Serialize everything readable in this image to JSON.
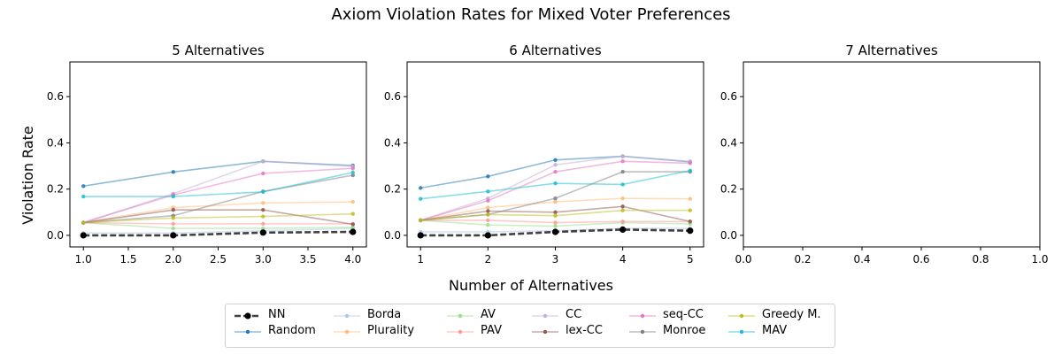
{
  "figure": {
    "suptitle": "Axiom Violation Rates for Mixed Voter Preferences",
    "xlabel": "Number of Alternatives",
    "ylabel": "Violation Rate"
  },
  "colors": {
    "NN": "#000000",
    "Random": "#1f77b4",
    "Borda": "#aec7e8",
    "Plurality": "#ffbb78",
    "AV": "#98df8a",
    "PAV": "#ff9896",
    "CC": "#c5b0d5",
    "lex-CC": "#8c564b",
    "seq-CC": "#e377c2",
    "Monroe": "#7f7f7f",
    "Greedy M.": "#bcbd22",
    "MAV": "#17becf"
  },
  "legend": {
    "columns": [
      [
        "NN",
        "Random"
      ],
      [
        "Borda",
        "Plurality"
      ],
      [
        "AV",
        "PAV"
      ],
      [
        "CC",
        "lex-CC"
      ],
      [
        "seq-CC",
        "Monroe"
      ],
      [
        "Greedy M.",
        "MAV"
      ]
    ]
  },
  "chart_data": [
    {
      "type": "line",
      "title": "5 Alternatives",
      "x": [
        1.0,
        2.0,
        3.0,
        4.0
      ],
      "xticks": [
        "1.0",
        "1.5",
        "2.0",
        "2.5",
        "3.0",
        "3.5",
        "4.0"
      ],
      "xtick_values": [
        1.0,
        1.5,
        2.0,
        2.5,
        3.0,
        3.5,
        4.0
      ],
      "xlim": [
        0.85,
        4.15
      ],
      "ylim": [
        -0.05,
        0.75
      ],
      "yticks": [
        "0.0",
        "0.2",
        "0.4",
        "0.6"
      ],
      "ytick_values": [
        0.0,
        0.2,
        0.4,
        0.6
      ],
      "series": [
        {
          "name": "Random",
          "values": [
            0.213,
            0.274,
            0.32,
            0.302
          ]
        },
        {
          "name": "Borda",
          "values": [
            0.01,
            0.01,
            0.02,
            0.03
          ]
        },
        {
          "name": "Plurality",
          "values": [
            0.055,
            0.12,
            0.14,
            0.145
          ]
        },
        {
          "name": "AV",
          "values": [
            0.055,
            0.03,
            0.03,
            0.035
          ]
        },
        {
          "name": "PAV",
          "values": [
            0.055,
            0.05,
            0.05,
            0.05
          ]
        },
        {
          "name": "CC",
          "values": [
            0.055,
            0.18,
            0.32,
            0.298
          ]
        },
        {
          "name": "lex-CC",
          "values": [
            0.055,
            0.11,
            0.11,
            0.048
          ]
        },
        {
          "name": "seq-CC",
          "values": [
            0.055,
            0.175,
            0.268,
            0.29
          ]
        },
        {
          "name": "Monroe",
          "values": [
            0.055,
            0.085,
            0.19,
            0.26
          ]
        },
        {
          "name": "Greedy M.",
          "values": [
            0.055,
            0.075,
            0.082,
            0.093
          ]
        },
        {
          "name": "MAV",
          "values": [
            0.168,
            0.168,
            0.188,
            0.272
          ]
        },
        {
          "name": "NN",
          "values": [
            0.0,
            0.0,
            0.012,
            0.015
          ]
        }
      ]
    },
    {
      "type": "line",
      "title": "6 Alternatives",
      "x": [
        1,
        2,
        3,
        4,
        5
      ],
      "xticks": [
        "1",
        "2",
        "3",
        "4",
        "5"
      ],
      "xtick_values": [
        1,
        2,
        3,
        4,
        5
      ],
      "xlim": [
        0.8,
        5.2
      ],
      "ylim": [
        -0.05,
        0.75
      ],
      "yticks": [
        "0.0",
        "0.2",
        "0.4",
        "0.6"
      ],
      "ytick_values": [
        0.0,
        0.2,
        0.4,
        0.6
      ],
      "series": [
        {
          "name": "Random",
          "values": [
            0.205,
            0.255,
            0.326,
            0.342,
            0.318
          ]
        },
        {
          "name": "Borda",
          "values": [
            0.015,
            0.015,
            0.02,
            0.03,
            0.03
          ]
        },
        {
          "name": "Plurality",
          "values": [
            0.065,
            0.12,
            0.145,
            0.16,
            0.158
          ]
        },
        {
          "name": "AV",
          "values": [
            0.065,
            0.045,
            0.04,
            0.055,
            0.05
          ]
        },
        {
          "name": "PAV",
          "values": [
            0.065,
            0.065,
            0.055,
            0.06,
            0.06
          ]
        },
        {
          "name": "CC",
          "values": [
            0.065,
            0.16,
            0.305,
            0.342,
            0.32
          ]
        },
        {
          "name": "lex-CC",
          "values": [
            0.065,
            0.105,
            0.1,
            0.125,
            0.06
          ]
        },
        {
          "name": "seq-CC",
          "values": [
            0.065,
            0.15,
            0.275,
            0.32,
            0.312
          ]
        },
        {
          "name": "Monroe",
          "values": [
            0.065,
            0.09,
            0.16,
            0.275,
            0.275
          ]
        },
        {
          "name": "Greedy M.",
          "values": [
            0.065,
            0.09,
            0.085,
            0.108,
            0.108
          ]
        },
        {
          "name": "MAV",
          "values": [
            0.158,
            0.19,
            0.225,
            0.22,
            0.28
          ]
        },
        {
          "name": "NN",
          "values": [
            0.0,
            0.0,
            0.015,
            0.025,
            0.02
          ]
        }
      ]
    },
    {
      "type": "line",
      "title": "7 Alternatives",
      "x": [],
      "xticks": [
        "0.0",
        "0.2",
        "0.4",
        "0.6",
        "0.8",
        "1.0"
      ],
      "xtick_values": [
        0.0,
        0.2,
        0.4,
        0.6,
        0.8,
        1.0
      ],
      "xlim": [
        0.0,
        1.0
      ],
      "ylim": [
        -0.05,
        0.75
      ],
      "yticks": [
        "0.0",
        "0.2",
        "0.4",
        "0.6"
      ],
      "ytick_values": [
        0.0,
        0.2,
        0.4,
        0.6
      ],
      "series": []
    }
  ]
}
